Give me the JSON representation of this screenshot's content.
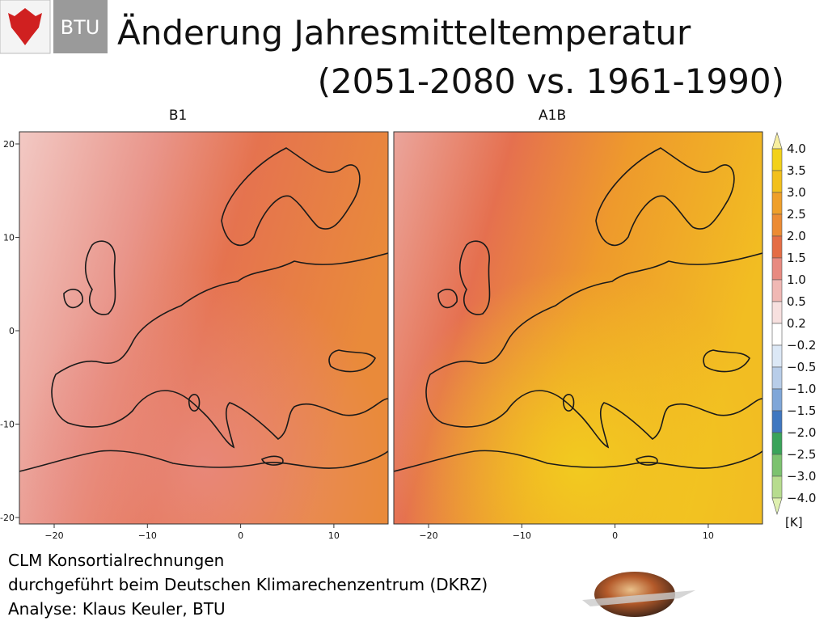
{
  "header": {
    "title_line1": "Änderung Jahresmitteltemperatur",
    "title_line2": "(2051-2080 vs. 1961-1990)",
    "logo_text": "BTU"
  },
  "maps": [
    {
      "label": "B1"
    },
    {
      "label": "A1B"
    }
  ],
  "y_ticks": [
    "20",
    "10",
    "0",
    "-10",
    "-20"
  ],
  "x_ticks": [
    "−20",
    "−10",
    "0",
    "10"
  ],
  "colorbar": {
    "labels": [
      "4.0",
      "3.5",
      "3.0",
      "2.5",
      "2.0",
      "1.5",
      "1.0",
      "0.5",
      "0.2",
      "−0.2",
      "−0.5",
      "−1.0",
      "−1.5",
      "−2.0",
      "−2.5",
      "−3.0",
      "−4.0"
    ],
    "colors": [
      "#f7efa0",
      "#f2d11a",
      "#f2c01c",
      "#ef9f2a",
      "#ec8b33",
      "#e46d45",
      "#e88a80",
      "#f0b8b4",
      "#f7e0df",
      "#ffffff",
      "#dce8f6",
      "#b8cde9",
      "#7fa6d8",
      "#3f77c0",
      "#3aa35a",
      "#7cc26f",
      "#b7dc8e",
      "#dff0b0"
    ],
    "unit": "[K]"
  },
  "footer": {
    "line1": "CLM Konsortialrechnungen",
    "line2": "durchgeführt beim Deutschen Klimarechenzentrum (DKRZ)",
    "line3": "Analyse: Klaus Keuler, BTU"
  }
}
